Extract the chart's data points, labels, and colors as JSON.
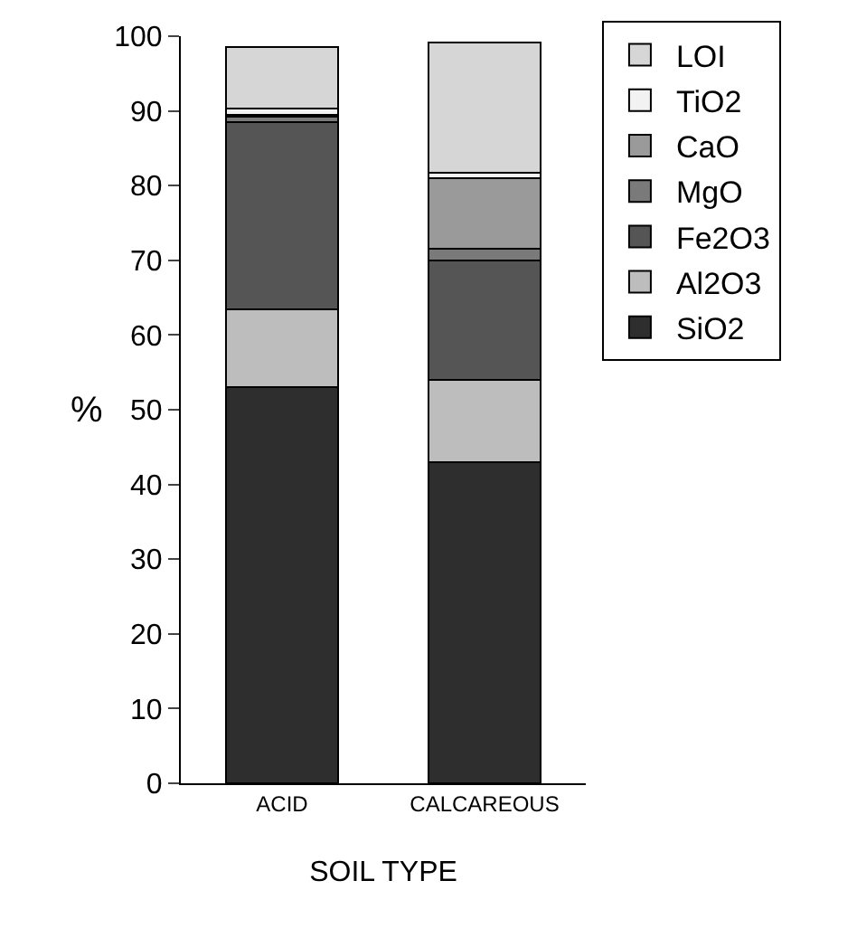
{
  "chart_data": {
    "type": "bar",
    "stacked": true,
    "xlabel": "SOIL TYPE",
    "ylabel": "%",
    "categories": [
      "ACID",
      "CALCAREOUS"
    ],
    "series": [
      {
        "name": "SiO2",
        "color": "#2e2e2e",
        "values": [
          53,
          43
        ]
      },
      {
        "name": "Al2O3",
        "color": "#bdbdbd",
        "values": [
          10.5,
          11
        ]
      },
      {
        "name": "Fe2O3",
        "color": "#555555",
        "values": [
          25,
          16
        ]
      },
      {
        "name": "MgO",
        "color": "#7a7a7a",
        "values": [
          0.7,
          1.5
        ]
      },
      {
        "name": "CaO",
        "color": "#9a9a9a",
        "values": [
          0.3,
          9.5
        ]
      },
      {
        "name": "TiO2",
        "color": "#f2f2f2",
        "values": [
          0.8,
          0.7
        ]
      },
      {
        "name": "LOI",
        "color": "#d6d6d6",
        "values": [
          8.3,
          17.5
        ]
      }
    ],
    "ylim": [
      0,
      100
    ],
    "yticks": [
      0,
      10,
      20,
      30,
      40,
      50,
      60,
      70,
      80,
      90,
      100
    ],
    "grid": false,
    "legend": "right"
  }
}
